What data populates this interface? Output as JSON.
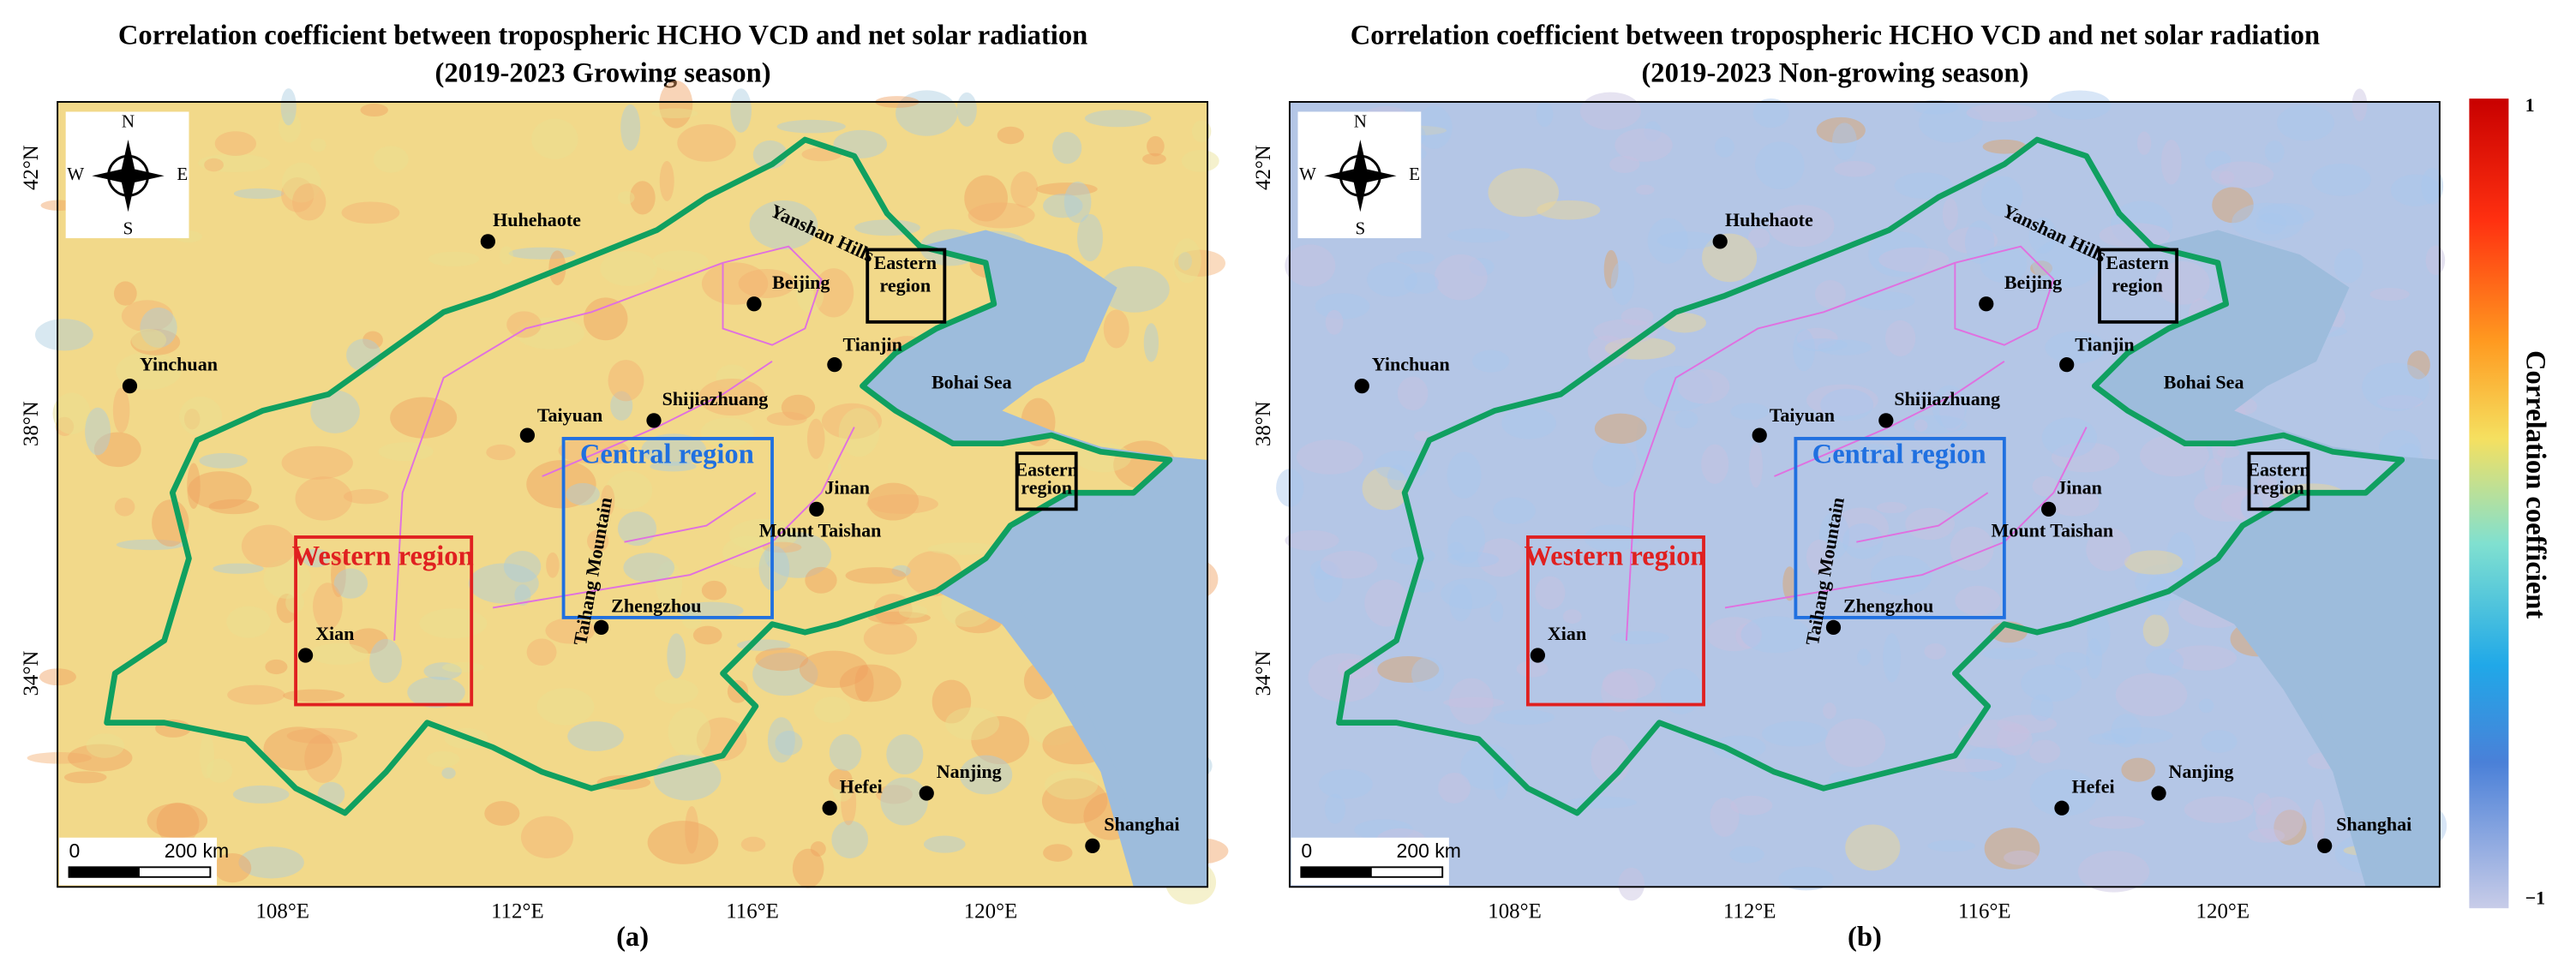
{
  "panels": [
    {
      "title": "Correlation coefficient between tropospheric HCHO VCD and net solar radiation",
      "subtitle": "(2019-2023 Growing season)",
      "label": "(a)"
    },
    {
      "title": "Correlation coefficient between tropospheric HCHO VCD and net solar radiation",
      "subtitle": "(2019-2023 Non-growing season)",
      "label": "(b)"
    }
  ],
  "map": {
    "lon_ticks": [
      "108°E",
      "112°E",
      "116°E",
      "120°E"
    ],
    "lat_ticks": [
      "42°N",
      "38°N",
      "34°N"
    ],
    "places": [
      "Huhehaote",
      "Beijing",
      "Tianjin",
      "Yinchuan",
      "Taiyuan",
      "Shijiazhuang",
      "Jinan",
      "Zhengzhou",
      "Xian",
      "Hefei",
      "Nanjing",
      "Shanghai"
    ],
    "features": [
      "Yanshan Hills",
      "Taihang Mountain",
      "Mount Taishan",
      "Bohai Sea"
    ],
    "regions": {
      "western": "Western region",
      "central": "Central region",
      "eastern": [
        "Eastern",
        "region"
      ]
    },
    "compass": [
      "N",
      "E",
      "S",
      "W"
    ],
    "scale": [
      "0",
      "200 km"
    ]
  },
  "colorbar": {
    "title": "Correlation coefficient",
    "ticks": [
      1,
      {
        "value": -1,
        "label": "−1"
      }
    ]
  }
}
